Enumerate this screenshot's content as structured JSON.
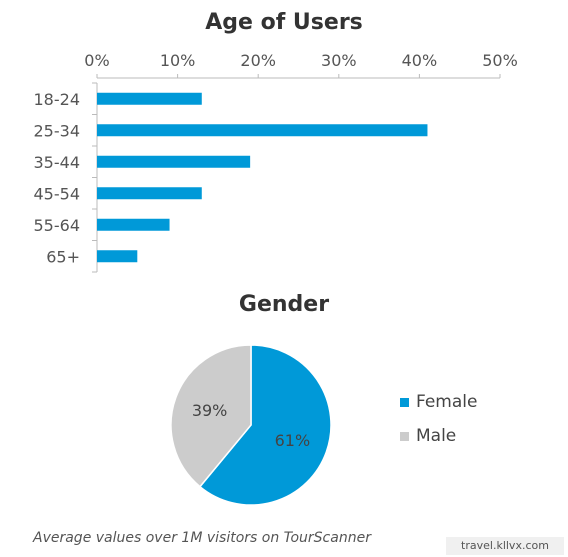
{
  "chart_data": [
    {
      "type": "bar",
      "orientation": "horizontal",
      "title": "Age of Users",
      "categories": [
        "18-24",
        "25-34",
        "35-44",
        "45-54",
        "55-64",
        "65+"
      ],
      "values": [
        13,
        41,
        19,
        13,
        9,
        5
      ],
      "xlim": [
        0,
        50
      ],
      "xticks": [
        "0%",
        "10%",
        "20%",
        "30%",
        "40%",
        "50%"
      ],
      "xaxis_position": "top",
      "grid": false,
      "color": "#0099d8"
    },
    {
      "type": "pie",
      "title": "Gender",
      "slices": [
        {
          "label": "Female",
          "value": 61,
          "display": "61%",
          "color": "#0099d8"
        },
        {
          "label": "Male",
          "value": 39,
          "display": "39%",
          "color": "#cccccc"
        }
      ],
      "legend_position": "right"
    }
  ],
  "footnote": "Average values over 1M visitors on TourScanner",
  "watermark": "travel.kllvx.com"
}
